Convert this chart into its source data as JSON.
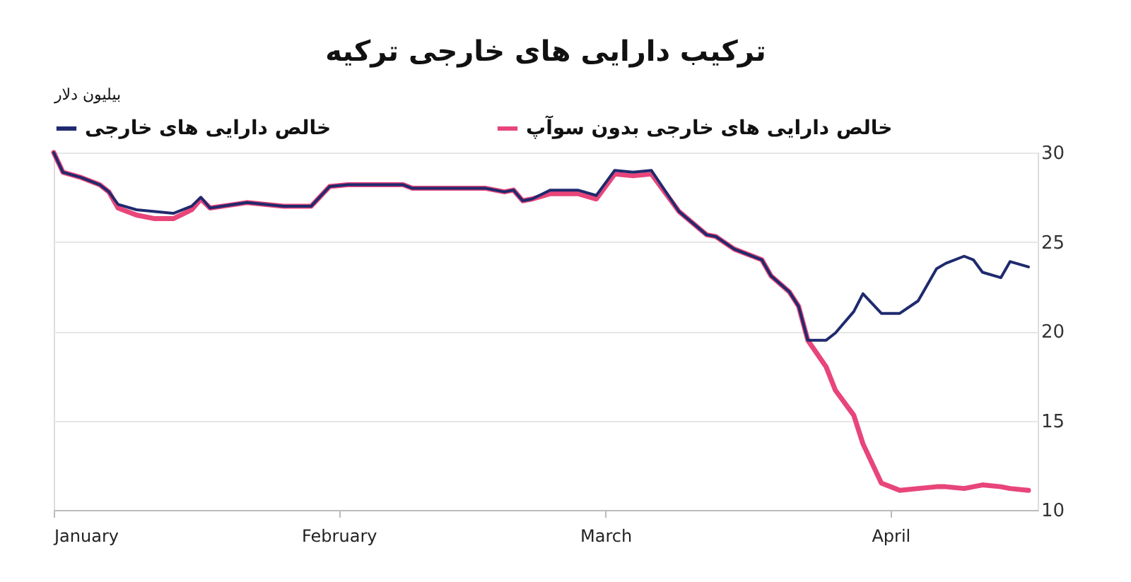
{
  "chart_data": {
    "type": "line",
    "title": "ترکیب دارایی های خارجی ترکیه",
    "ylabel": "بیلیون دلار",
    "x": [
      "--01-01",
      "--01-02",
      "--01-04",
      "--01-06",
      "--01-07",
      "--01-08",
      "--01-10",
      "--01-12",
      "--01-14",
      "--01-16",
      "--01-17",
      "--01-18",
      "--01-22",
      "--01-26",
      "--01-29",
      "--01-31",
      "--02-02",
      "--02-08",
      "--02-09",
      "--02-17",
      "--02-19",
      "--02-20",
      "--02-21",
      "--02-22",
      "--02-24",
      "--02-27",
      "--02-29",
      "--03-02",
      "--03-04",
      "--03-06",
      "--03-09",
      "--03-12",
      "--03-13",
      "--03-15",
      "--03-18",
      "--03-19",
      "--03-21",
      "--03-22",
      "--03-23",
      "--03-25",
      "--03-26",
      "--03-28",
      "--03-29",
      "--03-31",
      "--04-02",
      "--04-04",
      "--04-06",
      "--04-07",
      "--04-09",
      "--04-10",
      "--04-11",
      "--04-13",
      "--04-14",
      "--04-16"
    ],
    "series": [
      {
        "name": "خالص دارایی های خارجی",
        "color": "#1f2a6e",
        "values": [
          30.0,
          28.9,
          28.6,
          28.2,
          27.8,
          27.1,
          26.8,
          26.7,
          26.6,
          27.0,
          27.5,
          26.9,
          27.2,
          27.0,
          27.0,
          28.1,
          28.2,
          28.2,
          28.0,
          28.0,
          27.8,
          27.9,
          27.3,
          27.4,
          27.9,
          27.9,
          27.6,
          29.0,
          28.9,
          29.0,
          26.7,
          25.4,
          25.3,
          24.6,
          24.0,
          23.1,
          22.2,
          21.4,
          19.5,
          19.5,
          19.9,
          21.1,
          22.1,
          21.0,
          21.0,
          21.7,
          23.5,
          23.8,
          24.2,
          24.0,
          23.3,
          23.0,
          23.9,
          23.6
        ]
      },
      {
        "name": "خالص دارایی های خارجی بدون سوآپ",
        "color": "#e8457a",
        "values": [
          30.0,
          28.9,
          28.6,
          28.2,
          27.8,
          26.9,
          26.5,
          26.3,
          26.3,
          26.8,
          27.4,
          26.9,
          27.2,
          27.0,
          27.0,
          28.1,
          28.2,
          28.2,
          28.0,
          28.0,
          27.8,
          27.9,
          27.3,
          27.4,
          27.7,
          27.7,
          27.4,
          28.8,
          28.7,
          28.8,
          26.7,
          25.4,
          25.3,
          24.6,
          24.0,
          23.1,
          22.2,
          21.4,
          19.5,
          18.0,
          16.7,
          15.3,
          13.7,
          11.5,
          11.1,
          11.2,
          11.3,
          11.3,
          11.2,
          11.3,
          11.4,
          11.3,
          11.2,
          11.1
        ]
      }
    ],
    "xlim": [
      "--01-01",
      "--04-17"
    ],
    "xticks": [
      {
        "value": "--01-01",
        "label": "January"
      },
      {
        "value": "--02-01",
        "label": "February"
      },
      {
        "value": "--03-01",
        "label": "March"
      },
      {
        "value": "--04-01",
        "label": "April"
      }
    ],
    "ylim": [
      10,
      30
    ],
    "yticks": [
      10,
      15,
      20,
      25,
      30
    ],
    "grid": "y",
    "legend": "top left",
    "line_style": "solid"
  }
}
